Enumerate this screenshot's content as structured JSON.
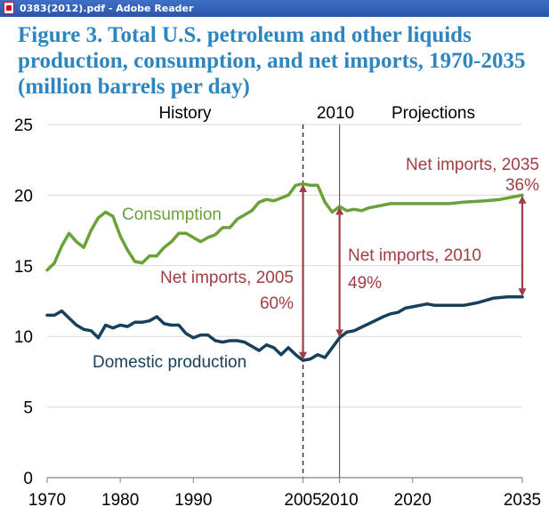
{
  "window": {
    "title": "0383(2012).pdf - Adobe Reader"
  },
  "figure": {
    "title_lines": [
      "Figure 3. Total U.S. petroleum and other liquids",
      "production, consumption, and net imports, 1970-2035",
      "(million barrels per day)"
    ]
  },
  "chart_data": {
    "type": "line",
    "title": "Figure 3. Total U.S. petroleum and other liquids production, consumption, and net imports, 1970-2035 (million barrels per day)",
    "xlabel": "",
    "ylabel": "",
    "xlim": [
      1970,
      2035
    ],
    "ylim": [
      0,
      25
    ],
    "x_ticks": [
      1970,
      1980,
      1990,
      2005,
      2010,
      2020,
      2035
    ],
    "y_ticks": [
      0,
      5,
      10,
      15,
      20,
      25
    ],
    "grid": "horizontal",
    "legend": "none (direct labels)",
    "region_labels": {
      "history": "History",
      "year_2010": "2010",
      "projections": "Projections"
    },
    "reference_lines": [
      {
        "x": 2005,
        "style": "dashed"
      },
      {
        "x": 2010,
        "style": "solid"
      }
    ],
    "series": [
      {
        "name": "Consumption",
        "color": "#6aa23a",
        "points": [
          [
            1970,
            14.7
          ],
          [
            1971,
            15.2
          ],
          [
            1972,
            16.4
          ],
          [
            1973,
            17.3
          ],
          [
            1974,
            16.7
          ],
          [
            1975,
            16.3
          ],
          [
            1976,
            17.5
          ],
          [
            1977,
            18.4
          ],
          [
            1978,
            18.8
          ],
          [
            1979,
            18.5
          ],
          [
            1980,
            17.1
          ],
          [
            1981,
            16.1
          ],
          [
            1982,
            15.3
          ],
          [
            1983,
            15.2
          ],
          [
            1984,
            15.7
          ],
          [
            1985,
            15.7
          ],
          [
            1986,
            16.3
          ],
          [
            1987,
            16.7
          ],
          [
            1988,
            17.3
          ],
          [
            1989,
            17.3
          ],
          [
            1990,
            17.0
          ],
          [
            1991,
            16.7
          ],
          [
            1992,
            17.0
          ],
          [
            1993,
            17.2
          ],
          [
            1994,
            17.7
          ],
          [
            1995,
            17.7
          ],
          [
            1996,
            18.3
          ],
          [
            1997,
            18.6
          ],
          [
            1998,
            18.9
          ],
          [
            1999,
            19.5
          ],
          [
            2000,
            19.7
          ],
          [
            2001,
            19.6
          ],
          [
            2002,
            19.8
          ],
          [
            2003,
            20.0
          ],
          [
            2004,
            20.7
          ],
          [
            2005,
            20.8
          ],
          [
            2006,
            20.7
          ],
          [
            2007,
            20.7
          ],
          [
            2008,
            19.5
          ],
          [
            2009,
            18.8
          ],
          [
            2010,
            19.2
          ],
          [
            2011,
            18.9
          ],
          [
            2012,
            19.0
          ],
          [
            2013,
            18.9
          ],
          [
            2014,
            19.1
          ],
          [
            2015,
            19.2
          ],
          [
            2016,
            19.3
          ],
          [
            2017,
            19.4
          ],
          [
            2018,
            19.4
          ],
          [
            2020,
            19.4
          ],
          [
            2025,
            19.4
          ],
          [
            2027,
            19.5
          ],
          [
            2030,
            19.6
          ],
          [
            2032,
            19.7
          ],
          [
            2035,
            20.0
          ]
        ]
      },
      {
        "name": "Domestic production",
        "color": "#17405c",
        "points": [
          [
            1970,
            11.5
          ],
          [
            1971,
            11.5
          ],
          [
            1972,
            11.8
          ],
          [
            1973,
            11.3
          ],
          [
            1974,
            10.8
          ],
          [
            1975,
            10.5
          ],
          [
            1976,
            10.4
          ],
          [
            1977,
            9.9
          ],
          [
            1978,
            10.8
          ],
          [
            1979,
            10.6
          ],
          [
            1980,
            10.8
          ],
          [
            1981,
            10.7
          ],
          [
            1982,
            11.0
          ],
          [
            1983,
            11.0
          ],
          [
            1984,
            11.1
          ],
          [
            1985,
            11.4
          ],
          [
            1986,
            10.9
          ],
          [
            1987,
            10.8
          ],
          [
            1988,
            10.8
          ],
          [
            1989,
            10.2
          ],
          [
            1990,
            9.9
          ],
          [
            1991,
            10.1
          ],
          [
            1992,
            10.1
          ],
          [
            1993,
            9.7
          ],
          [
            1994,
            9.6
          ],
          [
            1995,
            9.7
          ],
          [
            1996,
            9.7
          ],
          [
            1997,
            9.6
          ],
          [
            1998,
            9.3
          ],
          [
            1999,
            9.0
          ],
          [
            2000,
            9.4
          ],
          [
            2001,
            9.2
          ],
          [
            2002,
            8.7
          ],
          [
            2003,
            9.2
          ],
          [
            2004,
            8.7
          ],
          [
            2005,
            8.3
          ],
          [
            2006,
            8.4
          ],
          [
            2007,
            8.7
          ],
          [
            2008,
            8.5
          ],
          [
            2009,
            9.2
          ],
          [
            2010,
            9.9
          ],
          [
            2011,
            10.3
          ],
          [
            2012,
            10.4
          ],
          [
            2014,
            10.9
          ],
          [
            2016,
            11.4
          ],
          [
            2017,
            11.6
          ],
          [
            2018,
            11.7
          ],
          [
            2019,
            12.0
          ],
          [
            2020,
            12.1
          ],
          [
            2022,
            12.3
          ],
          [
            2023,
            12.2
          ],
          [
            2025,
            12.2
          ],
          [
            2027,
            12.2
          ],
          [
            2029,
            12.4
          ],
          [
            2031,
            12.7
          ],
          [
            2033,
            12.8
          ],
          [
            2035,
            12.8
          ]
        ]
      }
    ],
    "annotations": [
      {
        "label": "Net imports, 2005",
        "value_text": "60%",
        "x": 2005,
        "from": 8.3,
        "to": 20.8,
        "color": "#a13d44"
      },
      {
        "label": "Net imports, 2010",
        "value_text": "49%",
        "x": 2010,
        "from": 9.9,
        "to": 19.2,
        "color": "#a13d44"
      },
      {
        "label": "Net imports, 2035",
        "value_text": "36%",
        "x": 2035,
        "from": 12.8,
        "to": 20.0,
        "color": "#a13d44"
      }
    ]
  }
}
